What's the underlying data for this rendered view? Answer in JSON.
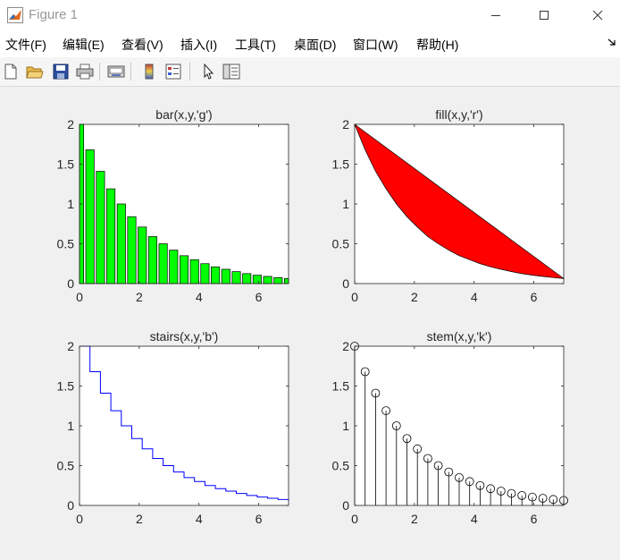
{
  "window": {
    "title": "Figure 1"
  },
  "menu": [
    "文件(F)",
    "编辑(E)",
    "查看(V)",
    "插入(I)",
    "工具(T)",
    "桌面(D)",
    "窗口(W)",
    "帮助(H)"
  ],
  "toolbar": {
    "icons": [
      "new-figure-icon",
      "open-file-icon",
      "save-icon",
      "print-icon",
      "link-plot-icon",
      "colorbar-icon",
      "legend-icon",
      "edit-plot-icon",
      "property-inspector-icon"
    ]
  },
  "colors": {
    "bar": "#00ff00",
    "fill": "#ff0000",
    "stairs": "#0000ff",
    "stem": "#000000"
  },
  "chart_data": [
    {
      "type": "bar",
      "title": "bar(x,y,'g')",
      "x": [
        0,
        0.35,
        0.7,
        1.05,
        1.4,
        1.75,
        2.1,
        2.45,
        2.8,
        3.15,
        3.5,
        3.85,
        4.2,
        4.55,
        4.9,
        5.25,
        5.6,
        5.95,
        6.3,
        6.65,
        7.0
      ],
      "y": [
        2.0,
        1.68,
        1.41,
        1.19,
        1.0,
        0.84,
        0.71,
        0.59,
        0.5,
        0.42,
        0.35,
        0.3,
        0.25,
        0.21,
        0.18,
        0.15,
        0.125,
        0.105,
        0.09,
        0.075,
        0.063
      ],
      "xlim": [
        0,
        7
      ],
      "ylim": [
        0,
        2
      ],
      "xticks": [
        "0",
        "2",
        "4",
        "6"
      ],
      "yticks": [
        "0",
        "0.5",
        "1",
        "1.5",
        "2"
      ],
      "color": "#00ff00"
    },
    {
      "type": "area",
      "title": "fill(x,y,'r')",
      "x": [
        0,
        0.35,
        0.7,
        1.05,
        1.4,
        1.75,
        2.1,
        2.45,
        2.8,
        3.15,
        3.5,
        3.85,
        4.2,
        4.55,
        4.9,
        5.25,
        5.6,
        5.95,
        6.3,
        6.65,
        7.0
      ],
      "y": [
        2.0,
        1.68,
        1.41,
        1.19,
        1.0,
        0.84,
        0.71,
        0.59,
        0.5,
        0.42,
        0.35,
        0.3,
        0.25,
        0.21,
        0.18,
        0.15,
        0.125,
        0.105,
        0.09,
        0.075,
        0.063
      ],
      "xlim": [
        0,
        7
      ],
      "ylim": [
        0,
        2
      ],
      "xticks": [
        "0",
        "2",
        "4",
        "6"
      ],
      "yticks": [
        "0",
        "0.5",
        "1",
        "1.5",
        "2"
      ],
      "color": "#ff0000"
    },
    {
      "type": "line",
      "title": "stairs(x,y,'b')",
      "x": [
        0,
        0.35,
        0.7,
        1.05,
        1.4,
        1.75,
        2.1,
        2.45,
        2.8,
        3.15,
        3.5,
        3.85,
        4.2,
        4.55,
        4.9,
        5.25,
        5.6,
        5.95,
        6.3,
        6.65,
        7.0
      ],
      "y": [
        2.0,
        1.68,
        1.41,
        1.19,
        1.0,
        0.84,
        0.71,
        0.59,
        0.5,
        0.42,
        0.35,
        0.3,
        0.25,
        0.21,
        0.18,
        0.15,
        0.125,
        0.105,
        0.09,
        0.075,
        0.063
      ],
      "xlim": [
        0,
        7
      ],
      "ylim": [
        0,
        2
      ],
      "xticks": [
        "0",
        "2",
        "4",
        "6"
      ],
      "yticks": [
        "0",
        "0.5",
        "1",
        "1.5",
        "2"
      ],
      "color": "#0000ff"
    },
    {
      "type": "scatter",
      "title": "stem(x,y,'k')",
      "x": [
        0,
        0.35,
        0.7,
        1.05,
        1.4,
        1.75,
        2.1,
        2.45,
        2.8,
        3.15,
        3.5,
        3.85,
        4.2,
        4.55,
        4.9,
        5.25,
        5.6,
        5.95,
        6.3,
        6.65,
        7.0
      ],
      "y": [
        2.0,
        1.68,
        1.41,
        1.19,
        1.0,
        0.84,
        0.71,
        0.59,
        0.5,
        0.42,
        0.35,
        0.3,
        0.25,
        0.21,
        0.18,
        0.15,
        0.125,
        0.105,
        0.09,
        0.075,
        0.063
      ],
      "xlim": [
        0,
        7
      ],
      "ylim": [
        0,
        2
      ],
      "xticks": [
        "0",
        "2",
        "4",
        "6"
      ],
      "yticks": [
        "0",
        "0.5",
        "1",
        "1.5",
        "2"
      ],
      "color": "#000000"
    }
  ]
}
